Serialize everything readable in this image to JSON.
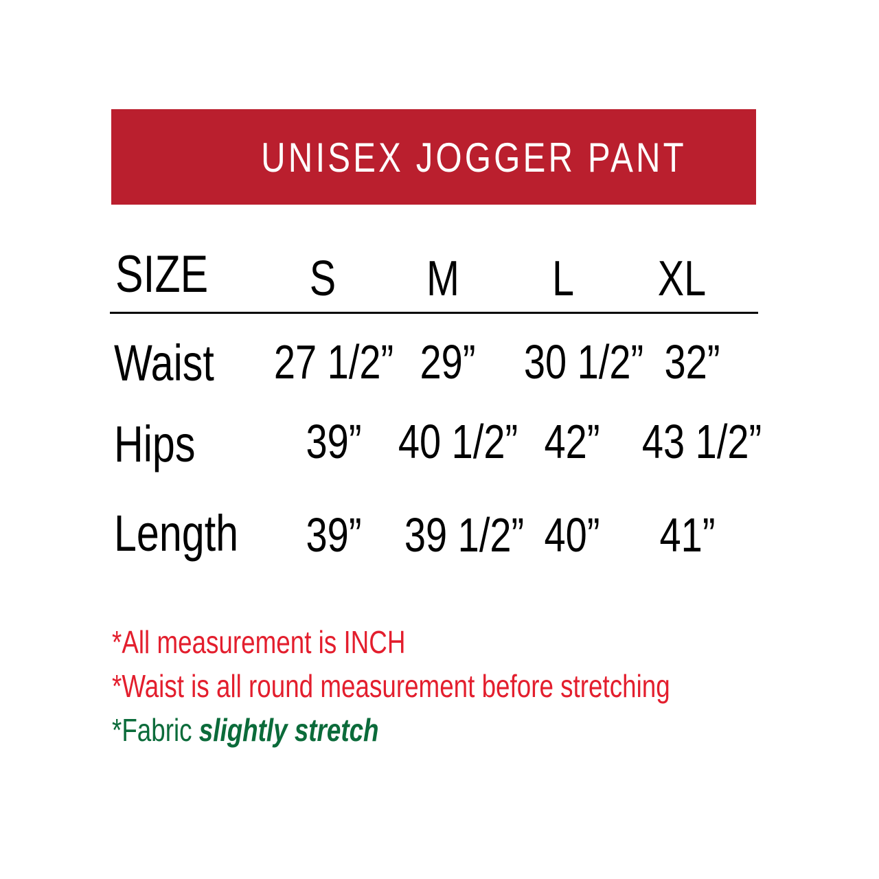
{
  "title": "UNISEX JOGGER PANT",
  "colors": {
    "banner": "#BA1F2E",
    "note_red": "#E31E2D",
    "note_green": "#0B6B3A",
    "text": "#000000"
  },
  "table": {
    "header": {
      "label": "SIZE",
      "sizes": [
        "S",
        "M",
        "L",
        "XL"
      ]
    },
    "rows": [
      {
        "label": "Waist",
        "values": [
          "27 1/2”",
          "29”",
          "30 1/2”",
          "32”"
        ]
      },
      {
        "label": "Hips",
        "values": [
          "39”",
          "40 1/2”",
          "42”",
          "43 1/2”"
        ]
      },
      {
        "label": "Length",
        "values": [
          "39”",
          "39 1/2”",
          "40”",
          "41”"
        ]
      }
    ]
  },
  "notes": {
    "n1": "*All measurement is INCH",
    "n2": "*Waist is all round measurement before stretching",
    "n3_prefix": "*Fabric ",
    "n3_emphasis": "slightly stretch"
  }
}
